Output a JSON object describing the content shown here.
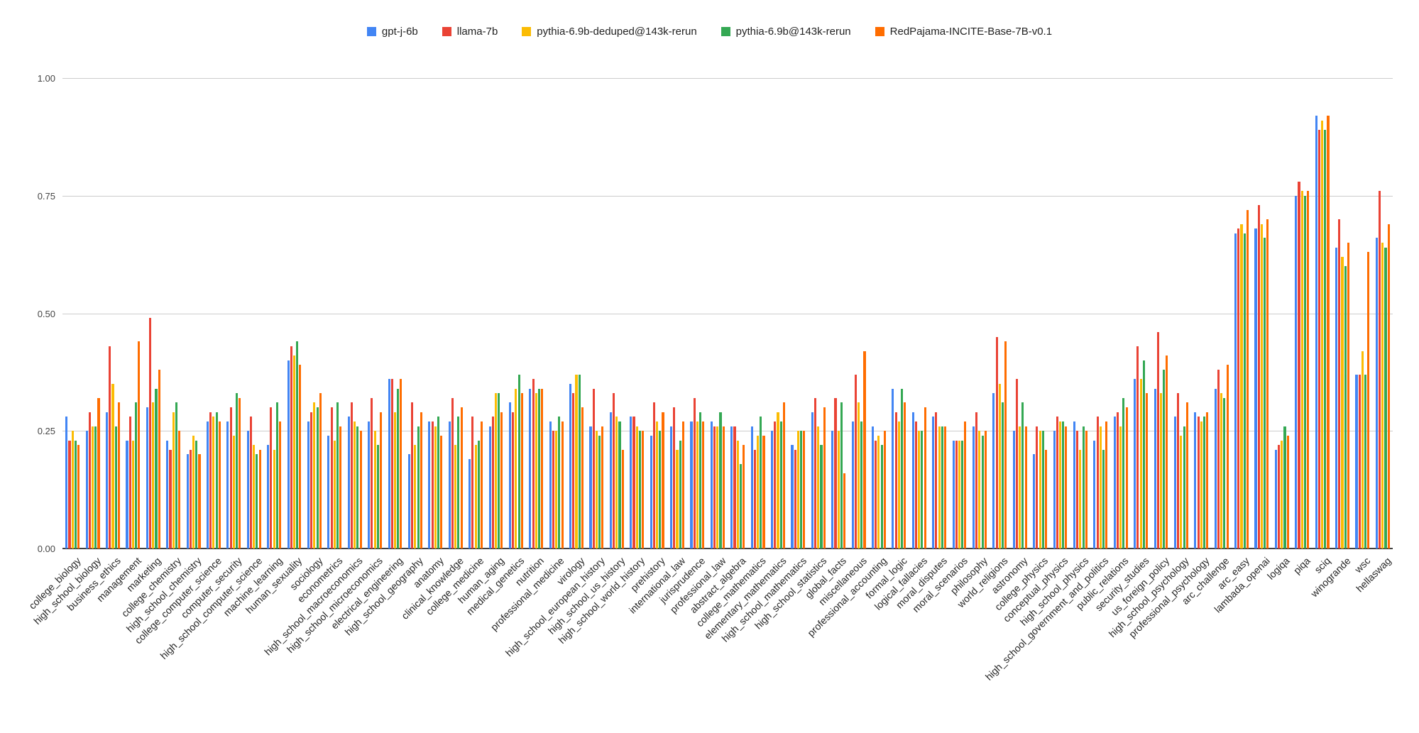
{
  "chart_data": {
    "type": "bar",
    "title": "",
    "xlabel": "",
    "ylabel": "",
    "grid": true,
    "legend_position": "top-center",
    "y_axis": {
      "min": 0,
      "max": 1,
      "ticks": [
        0,
        0.25,
        0.5,
        0.75,
        1
      ],
      "tick_labels": [
        "0.00",
        "0.25",
        "0.50",
        "0.75",
        "1.00"
      ]
    },
    "categories": [
      "college_biology",
      "high_school_biology",
      "business_ethics",
      "management",
      "marketing",
      "college_chemistry",
      "high_school_chemistry",
      "college_computer_science",
      "computer_security",
      "high_school_computer_science",
      "machine_learning",
      "human_sexuality",
      "sociology",
      "econometrics",
      "high_school_macroeconomics",
      "high_school_microeconomics",
      "electrical_engineering",
      "high_school_geography",
      "anatomy",
      "clinical_knowledge",
      "college_medicine",
      "human_aging",
      "medical_genetics",
      "nutrition",
      "professional_medicine",
      "virology",
      "high_school_european_history",
      "high_school_us_history",
      "high_school_world_history",
      "prehistory",
      "international_law",
      "jurisprudence",
      "professional_law",
      "abstract_algebra",
      "college_mathematics",
      "elementary_mathematics",
      "high_school_mathematics",
      "high_school_statistics",
      "global_facts",
      "miscellaneous",
      "professional_accounting",
      "formal_logic",
      "logical_fallacies",
      "moral_disputes",
      "moral_scenarios",
      "philosophy",
      "world_religions",
      "astronomy",
      "college_physics",
      "conceptual_physics",
      "high_school_physics",
      "high_school_government_and_politics",
      "public_relations",
      "security_studies",
      "us_foreign_policy",
      "high_school_psychology",
      "professional_psychology",
      "arc_challenge",
      "arc_easy",
      "lambada_openai",
      "logiqa",
      "piqa",
      "sciq",
      "winogrande",
      "wsc",
      "hellaswag"
    ],
    "series": [
      {
        "name": "gpt-j-6b",
        "color": "#4285F4",
        "values": [
          0.28,
          0.25,
          0.29,
          0.23,
          0.3,
          0.23,
          0.2,
          0.27,
          0.27,
          0.25,
          0.22,
          0.4,
          0.27,
          0.24,
          0.28,
          0.27,
          0.36,
          0.2,
          0.27,
          0.27,
          0.19,
          0.26,
          0.31,
          0.34,
          0.27,
          0.35,
          0.26,
          0.29,
          0.28,
          0.24,
          0.26,
          0.27,
          0.27,
          0.26,
          0.26,
          0.25,
          0.22,
          0.29,
          0.25,
          0.27,
          0.26,
          0.34,
          0.29,
          0.28,
          0.23,
          0.26,
          0.33,
          0.25,
          0.2,
          0.25,
          0.27,
          0.23,
          0.28,
          0.36,
          0.34,
          0.28,
          0.29,
          0.34,
          0.67,
          0.68,
          0.21,
          0.75,
          0.92,
          0.64,
          0.37,
          0.66
        ]
      },
      {
        "name": "llama-7b",
        "color": "#EA4335",
        "values": [
          0.23,
          0.29,
          0.43,
          0.28,
          0.49,
          0.21,
          0.21,
          0.29,
          0.3,
          0.28,
          0.3,
          0.43,
          0.29,
          0.3,
          0.31,
          0.32,
          0.36,
          0.31,
          0.27,
          0.32,
          0.28,
          0.28,
          0.29,
          0.36,
          0.25,
          0.33,
          0.34,
          0.33,
          0.28,
          0.31,
          0.3,
          0.32,
          0.26,
          0.26,
          0.21,
          0.27,
          0.21,
          0.32,
          0.32,
          0.37,
          0.23,
          0.29,
          0.27,
          0.29,
          0.23,
          0.29,
          0.45,
          0.36,
          0.26,
          0.28,
          0.25,
          0.28,
          0.29,
          0.43,
          0.46,
          0.33,
          0.28,
          0.38,
          0.68,
          0.73,
          0.22,
          0.78,
          0.89,
          0.7,
          0.37,
          0.76
        ]
      },
      {
        "name": "pythia-6.9b-deduped@143k-rerun",
        "color": "#FBBC04",
        "values": [
          0.25,
          0.26,
          0.35,
          0.23,
          0.31,
          0.29,
          0.24,
          0.28,
          0.24,
          0.22,
          0.21,
          0.41,
          0.31,
          0.23,
          0.27,
          0.25,
          0.29,
          0.22,
          0.26,
          0.22,
          0.22,
          0.33,
          0.34,
          0.33,
          0.25,
          0.37,
          0.25,
          0.28,
          0.26,
          0.27,
          0.21,
          0.27,
          0.26,
          0.23,
          0.24,
          0.29,
          0.25,
          0.26,
          0.25,
          0.31,
          0.24,
          0.27,
          0.25,
          0.26,
          0.23,
          0.25,
          0.35,
          0.26,
          0.25,
          0.27,
          0.21,
          0.26,
          0.26,
          0.36,
          0.33,
          0.24,
          0.27,
          0.33,
          0.69,
          0.69,
          0.23,
          0.76,
          0.91,
          0.62,
          0.42,
          0.65
        ]
      },
      {
        "name": "pythia-6.9b@143k-rerun",
        "color": "#34A853",
        "values": [
          0.23,
          0.26,
          0.26,
          0.31,
          0.34,
          0.31,
          0.23,
          0.29,
          0.33,
          0.2,
          0.31,
          0.44,
          0.3,
          0.31,
          0.26,
          0.22,
          0.34,
          0.26,
          0.28,
          0.28,
          0.23,
          0.33,
          0.37,
          0.34,
          0.28,
          0.37,
          0.24,
          0.27,
          0.25,
          0.25,
          0.23,
          0.29,
          0.29,
          0.18,
          0.28,
          0.27,
          0.25,
          0.22,
          0.31,
          0.27,
          0.22,
          0.34,
          0.25,
          0.26,
          0.23,
          0.24,
          0.31,
          0.31,
          0.25,
          0.27,
          0.26,
          0.21,
          0.32,
          0.4,
          0.38,
          0.26,
          0.28,
          0.32,
          0.67,
          0.66,
          0.26,
          0.75,
          0.89,
          0.6,
          0.37,
          0.64
        ]
      },
      {
        "name": "RedPajama-INCITE-Base-7B-v0.1",
        "color": "#FF6D00",
        "values": [
          0.22,
          0.32,
          0.31,
          0.44,
          0.38,
          0.25,
          0.2,
          0.27,
          0.32,
          0.21,
          0.27,
          0.39,
          0.33,
          0.26,
          0.25,
          0.29,
          0.36,
          0.29,
          0.24,
          0.3,
          0.27,
          0.29,
          0.33,
          0.34,
          0.27,
          0.3,
          0.26,
          0.21,
          0.25,
          0.29,
          0.27,
          0.27,
          0.26,
          0.22,
          0.24,
          0.31,
          0.25,
          0.3,
          0.16,
          0.42,
          0.25,
          0.31,
          0.3,
          0.26,
          0.27,
          0.25,
          0.44,
          0.26,
          0.21,
          0.26,
          0.25,
          0.27,
          0.3,
          0.33,
          0.41,
          0.31,
          0.29,
          0.39,
          0.72,
          0.7,
          0.24,
          0.76,
          0.92,
          0.65,
          0.63,
          0.69
        ]
      }
    ]
  }
}
